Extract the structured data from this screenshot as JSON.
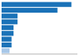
{
  "chart_data": {
    "type": "bar",
    "orientation": "horizontal",
    "categories": [
      null,
      null,
      null,
      null,
      null,
      null,
      null,
      null,
      null
    ],
    "values": [
      35,
      28,
      8,
      8,
      6,
      6,
      5,
      5,
      4
    ],
    "colors": [
      "#1a72b8",
      "#1a72b8",
      "#1a72b8",
      "#1a72b8",
      "#1a72b8",
      "#1a72b8",
      "#1a72b8",
      "#1a72b8",
      "#a8c8e8"
    ],
    "xlim": [
      0,
      38
    ],
    "tick_labels": false
  }
}
